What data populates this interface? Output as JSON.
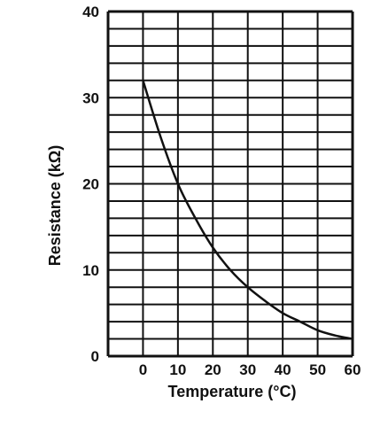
{
  "chart_data": {
    "type": "line",
    "title": "",
    "xlabel": "Temperature (°C)",
    "ylabel": "Resistance (kΩ)",
    "xlim": [
      -10,
      60
    ],
    "ylim": [
      0,
      40
    ],
    "x_ticks": [
      "0",
      "10",
      "20",
      "30",
      "40",
      "50",
      "60"
    ],
    "y_ticks": [
      "0",
      "10",
      "20",
      "30",
      "40"
    ],
    "grid": true,
    "x": [
      0,
      5,
      10,
      15,
      20,
      25,
      30,
      35,
      40,
      45,
      50,
      55,
      60
    ],
    "series": [
      {
        "values": [
          32.0,
          25.5,
          20.0,
          16.0,
          12.6,
          10.0,
          8.0,
          6.4,
          5.0,
          4.0,
          3.0,
          2.4,
          2.0
        ]
      }
    ],
    "colors": {
      "line": "#111111",
      "grid": "#111111"
    }
  }
}
